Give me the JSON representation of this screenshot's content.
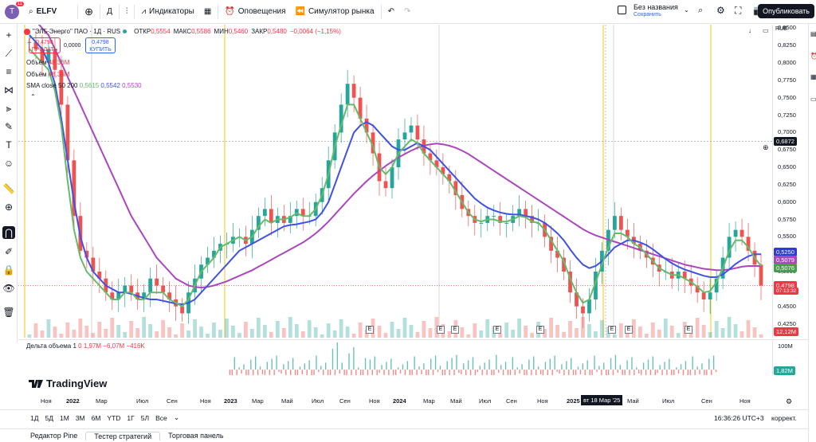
{
  "topbar": {
    "avatar_letter": "T",
    "avatar_badge": "11",
    "symbol": "ELFV",
    "interval": "Д",
    "indicators": "Индикаторы",
    "alerts": "Оповещения",
    "replay": "Симулятор рынка",
    "layout_name": "Без названия",
    "layout_saved": "Сохранить",
    "publish": "Опубликовать"
  },
  "legend": {
    "title": "\"ЭЛ5-Энерго\" ПАО · 1Д · RUS",
    "open_label": "ОТКР",
    "open": "0,5554",
    "high_label": "МАКС",
    "high": "0,5586",
    "low_label": "МИН",
    "low": "0,5460",
    "close_label": "ЗАКР",
    "close": "0,5480",
    "change": "−0,0064 (−1,15%)",
    "sell_price": "0,4798",
    "sell_label": "ПРОДАТЬ",
    "spread": "0,0000",
    "buy_price": "0,4798",
    "buy_label": "КУПИТЬ",
    "vol1_label": "Объём",
    "vol1_value": "48,36M",
    "vol2_label": "Объём",
    "vol2_value": "48,36M",
    "sma_label": "SMA close 50 200",
    "sma1": "0,5615",
    "sma2": "0,5542",
    "sma3": "0,5530",
    "delta_label": "Дельта объема 1",
    "delta_values": "0  1,97M  −6,07M  −416K"
  },
  "price_axis": {
    "currency": "RUB",
    "ticks": [
      "0,8500",
      "0,8250",
      "0,8000",
      "0,7750",
      "0,7500",
      "0,7250",
      "0,7000",
      "0,6750",
      "0,6500",
      "0,6250",
      "0,6000",
      "0,5750",
      "0,5500",
      "0,5250",
      "0,5000",
      "0,4750",
      "0,4500",
      "0,4250"
    ],
    "crosshair_price": "0,6872",
    "badge_blue": "0,5250",
    "badge_purple": "0,5079",
    "badge_green": "0,5076",
    "last_price": "0,4798",
    "countdown": "07:13:32",
    "volume_badge": "12,12M",
    "vol_pane_max": "100M",
    "vol_pane_badge": "1,82M"
  },
  "time_axis": [
    "Ноя",
    "2022",
    "Мар",
    "Июл",
    "Сен",
    "Ноя",
    "2023",
    "Мар",
    "Май",
    "Июл",
    "Сен",
    "Ноя",
    "2024",
    "Мар",
    "Май",
    "Июл",
    "Сен",
    "Ноя",
    "2025",
    "Май",
    "Июл",
    "Сен",
    "Ноя"
  ],
  "crosshair_date": "вт 18 Мар '25",
  "earnings_mark": "E",
  "brand": "TradingView",
  "bottombar": {
    "ranges": [
      "1Д",
      "5Д",
      "1М",
      "3М",
      "6М",
      "YTD",
      "1Г",
      "5Л",
      "Все"
    ],
    "clock": "16:36:26 UTC+3",
    "adjust": "коррект."
  },
  "panels": [
    "Редактор Pine",
    "Тестер стратегий",
    "Торговая панель"
  ],
  "colors": {
    "sma_fast": "#66bb6a",
    "sma_mid": "#3f51e6",
    "sma_slow": "#ab47bc",
    "up": "#26a69a",
    "down": "#ef5350",
    "session": "#f5c518"
  },
  "chart_data": {
    "type": "candlestick",
    "y_range": [
      0.405,
      0.855
    ],
    "closes": [
      0.83,
      0.82,
      0.8,
      0.82,
      0.79,
      0.74,
      0.66,
      0.58,
      0.53,
      0.52,
      0.5,
      0.49,
      0.47,
      0.46,
      0.47,
      0.48,
      0.47,
      0.46,
      0.47,
      0.49,
      0.48,
      0.47,
      0.46,
      0.45,
      0.44,
      0.47,
      0.49,
      0.51,
      0.52,
      0.53,
      0.54,
      0.54,
      0.55,
      0.55,
      0.54,
      0.56,
      0.58,
      0.59,
      0.57,
      0.58,
      0.57,
      0.58,
      0.59,
      0.58,
      0.58,
      0.6,
      0.62,
      0.66,
      0.7,
      0.74,
      0.77,
      0.75,
      0.72,
      0.7,
      0.67,
      0.63,
      0.62,
      0.65,
      0.69,
      0.7,
      0.71,
      0.69,
      0.67,
      0.66,
      0.65,
      0.64,
      0.63,
      0.61,
      0.59,
      0.58,
      0.57,
      0.57,
      0.58,
      0.58,
      0.57,
      0.57,
      0.58,
      0.59,
      0.58,
      0.57,
      0.57,
      0.55,
      0.53,
      0.52,
      0.5,
      0.47,
      0.45,
      0.44,
      0.46,
      0.5,
      0.53,
      0.56,
      0.58,
      0.56,
      0.55,
      0.54,
      0.53,
      0.52,
      0.51,
      0.5,
      0.5,
      0.49,
      0.5,
      0.49,
      0.48,
      0.47,
      0.46,
      0.47,
      0.49,
      0.52,
      0.55,
      0.56,
      0.55,
      0.53,
      0.51,
      0.48
    ],
    "sma_fast": [
      0.82,
      0.81,
      0.8,
      0.79,
      0.76,
      0.71,
      0.63,
      0.56,
      0.52,
      0.5,
      0.49,
      0.48,
      0.47,
      0.46,
      0.46,
      0.47,
      0.47,
      0.46,
      0.46,
      0.47,
      0.47,
      0.47,
      0.46,
      0.455,
      0.45,
      0.46,
      0.48,
      0.5,
      0.51,
      0.52,
      0.535,
      0.54,
      0.545,
      0.55,
      0.545,
      0.55,
      0.565,
      0.575,
      0.57,
      0.575,
      0.575,
      0.578,
      0.584,
      0.58,
      0.58,
      0.59,
      0.61,
      0.64,
      0.68,
      0.71,
      0.74,
      0.74,
      0.72,
      0.7,
      0.68,
      0.65,
      0.64,
      0.65,
      0.67,
      0.68,
      0.69,
      0.685,
      0.67,
      0.66,
      0.65,
      0.64,
      0.63,
      0.615,
      0.6,
      0.585,
      0.575,
      0.572,
      0.575,
      0.575,
      0.572,
      0.572,
      0.575,
      0.58,
      0.578,
      0.572,
      0.57,
      0.56,
      0.545,
      0.53,
      0.515,
      0.49,
      0.47,
      0.455,
      0.46,
      0.485,
      0.51,
      0.535,
      0.555,
      0.555,
      0.55,
      0.54,
      0.535,
      0.525,
      0.515,
      0.505,
      0.5,
      0.495,
      0.495,
      0.49,
      0.485,
      0.478,
      0.47,
      0.472,
      0.485,
      0.505,
      0.53,
      0.545,
      0.545,
      0.535,
      0.52,
      0.508
    ],
    "sma_mid": [
      0.84,
      0.83,
      0.82,
      0.8,
      0.77,
      0.72,
      0.66,
      0.6,
      0.55,
      0.52,
      0.5,
      0.49,
      0.48,
      0.475,
      0.47,
      0.47,
      0.468,
      0.465,
      0.462,
      0.46,
      0.46,
      0.458,
      0.456,
      0.454,
      0.453,
      0.455,
      0.46,
      0.47,
      0.48,
      0.49,
      0.5,
      0.51,
      0.52,
      0.53,
      0.535,
      0.54,
      0.545,
      0.55,
      0.555,
      0.56,
      0.565,
      0.567,
      0.568,
      0.57,
      0.572,
      0.575,
      0.585,
      0.6,
      0.625,
      0.65,
      0.675,
      0.7,
      0.71,
      0.715,
      0.71,
      0.7,
      0.69,
      0.68,
      0.675,
      0.675,
      0.68,
      0.685,
      0.68,
      0.675,
      0.665,
      0.655,
      0.645,
      0.635,
      0.625,
      0.615,
      0.605,
      0.598,
      0.592,
      0.588,
      0.585,
      0.583,
      0.582,
      0.582,
      0.58,
      0.578,
      0.575,
      0.57,
      0.563,
      0.555,
      0.545,
      0.532,
      0.52,
      0.51,
      0.505,
      0.508,
      0.515,
      0.525,
      0.535,
      0.54,
      0.545,
      0.545,
      0.542,
      0.538,
      0.532,
      0.525,
      0.518,
      0.512,
      0.507,
      0.503,
      0.5,
      0.497,
      0.494,
      0.492,
      0.492,
      0.496,
      0.503,
      0.511,
      0.517,
      0.522,
      0.525,
      0.525
    ],
    "sma_slow": [
      0.87,
      0.86,
      0.85,
      0.84,
      0.82,
      0.8,
      0.78,
      0.76,
      0.74,
      0.72,
      0.7,
      0.68,
      0.66,
      0.64,
      0.62,
      0.6,
      0.58,
      0.565,
      0.55,
      0.535,
      0.52,
      0.51,
      0.5,
      0.49,
      0.485,
      0.48,
      0.478,
      0.477,
      0.478,
      0.48,
      0.483,
      0.486,
      0.49,
      0.494,
      0.498,
      0.502,
      0.507,
      0.512,
      0.517,
      0.522,
      0.527,
      0.532,
      0.537,
      0.542,
      0.548,
      0.555,
      0.563,
      0.572,
      0.582,
      0.592,
      0.602,
      0.612,
      0.621,
      0.63,
      0.638,
      0.645,
      0.652,
      0.658,
      0.664,
      0.669,
      0.674,
      0.678,
      0.681,
      0.683,
      0.684,
      0.683,
      0.681,
      0.678,
      0.674,
      0.669,
      0.663,
      0.657,
      0.651,
      0.645,
      0.639,
      0.633,
      0.627,
      0.621,
      0.615,
      0.609,
      0.603,
      0.597,
      0.591,
      0.585,
      0.579,
      0.573,
      0.567,
      0.561,
      0.556,
      0.552,
      0.549,
      0.546,
      0.543,
      0.54,
      0.537,
      0.534,
      0.531,
      0.528,
      0.525,
      0.522,
      0.519,
      0.516,
      0.513,
      0.51,
      0.508,
      0.506,
      0.504,
      0.503,
      0.502,
      0.502,
      0.503,
      0.505,
      0.507,
      0.508,
      0.508,
      0.5079
    ]
  }
}
